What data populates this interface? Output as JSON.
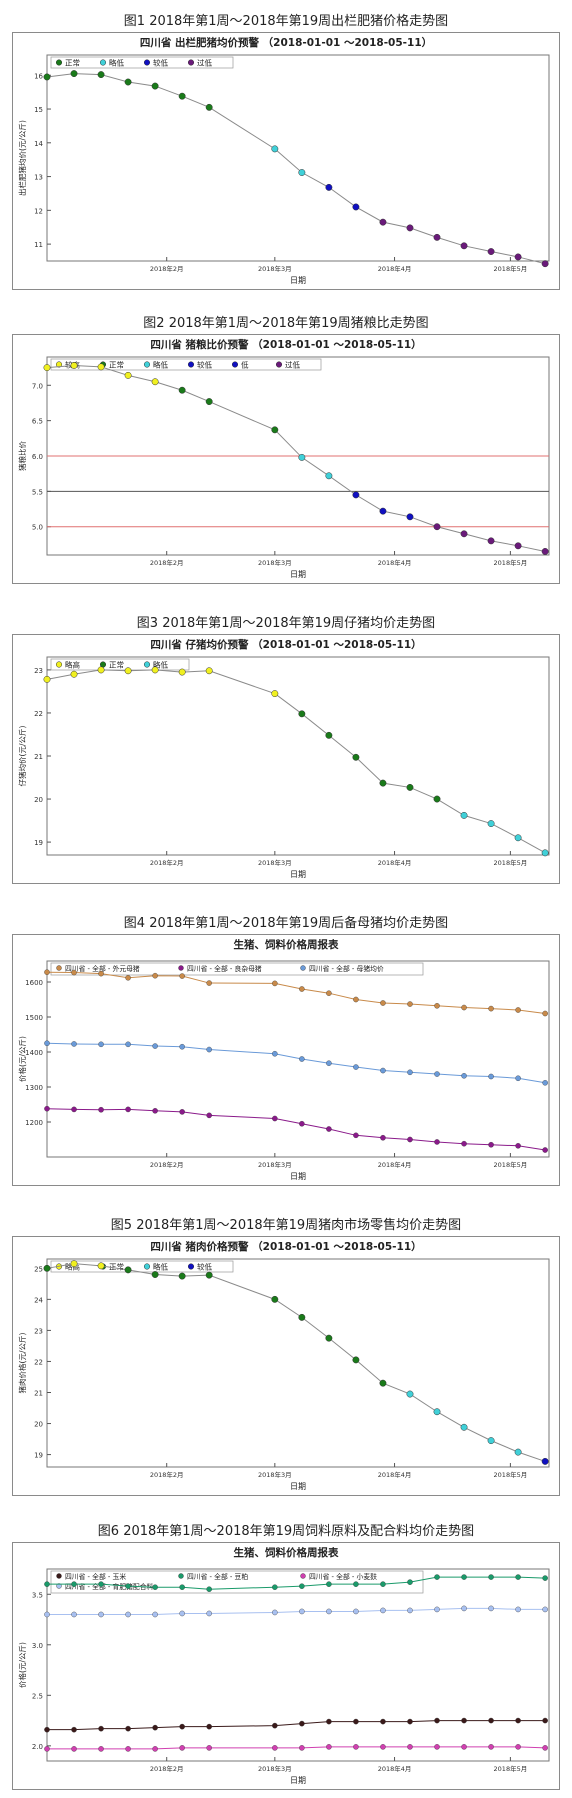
{
  "figures": [
    {
      "caption": "图1 2018年第1周～2018年第19周出栏肥猪价格走势图",
      "chart_data": {
        "type": "line",
        "title": "四川省 出栏肥猪均价预警 （2018-01-01 ～2018-05-11）",
        "xlabel": "日期",
        "ylabel": "出栏肥猪均价(元/公斤)",
        "ylim": [
          10.5,
          16.6
        ],
        "yticks": [
          11,
          12,
          13,
          14,
          15,
          16
        ],
        "x_tick_labels": [
          "2018年2月",
          "2018年3月",
          "2018年4月",
          "2018年5月"
        ],
        "legend": [
          {
            "label": "正常",
            "color": "#1a7a1a"
          },
          {
            "label": "略低",
            "color": "#40d0d8"
          },
          {
            "label": "较低",
            "color": "#1010c0"
          },
          {
            "label": "过低",
            "color": "#6a1a7a"
          }
        ],
        "points": [
          {
            "x": "2018-01-01",
            "y": 15.95,
            "status": "正常"
          },
          {
            "x": "2018-01-08",
            "y": 16.05,
            "status": "正常"
          },
          {
            "x": "2018-01-15",
            "y": 16.02,
            "status": "正常"
          },
          {
            "x": "2018-01-22",
            "y": 15.8,
            "status": "正常"
          },
          {
            "x": "2018-01-29",
            "y": 15.68,
            "status": "正常"
          },
          {
            "x": "2018-02-05",
            "y": 15.38,
            "status": "正常"
          },
          {
            "x": "2018-02-12",
            "y": 15.05,
            "status": "正常"
          },
          {
            "x": "2018-03-01",
            "y": 13.82,
            "status": "略低"
          },
          {
            "x": "2018-03-08",
            "y": 13.12,
            "status": "略低"
          },
          {
            "x": "2018-03-15",
            "y": 12.68,
            "status": "较低"
          },
          {
            "x": "2018-03-22",
            "y": 12.1,
            "status": "较低"
          },
          {
            "x": "2018-03-29",
            "y": 11.65,
            "status": "过低"
          },
          {
            "x": "2018-04-05",
            "y": 11.48,
            "status": "过低"
          },
          {
            "x": "2018-04-12",
            "y": 11.2,
            "status": "过低"
          },
          {
            "x": "2018-04-19",
            "y": 10.95,
            "status": "过低"
          },
          {
            "x": "2018-04-26",
            "y": 10.78,
            "status": "过低"
          },
          {
            "x": "2018-05-03",
            "y": 10.62,
            "status": "过低"
          },
          {
            "x": "2018-05-10",
            "y": 10.42,
            "status": "过低"
          }
        ],
        "hlines": []
      }
    },
    {
      "caption": "图2 2018年第1周～2018年第19周猪粮比走势图",
      "chart_data": {
        "type": "line",
        "title": "四川省 猪粮比价预警 （2018-01-01 ～2018-05-11）",
        "xlabel": "日期",
        "ylabel": "猪粮比价",
        "ylim": [
          4.6,
          7.4
        ],
        "yticks": [
          5.0,
          5.5,
          6.0,
          6.5,
          7.0
        ],
        "x_tick_labels": [
          "2018年2月",
          "2018年3月",
          "2018年4月",
          "2018年5月"
        ],
        "legend": [
          {
            "label": "较高",
            "color": "#f0f020"
          },
          {
            "label": "正常",
            "color": "#1a7a1a"
          },
          {
            "label": "略低",
            "color": "#40d0d8"
          },
          {
            "label": "较低",
            "color": "#1010c0"
          },
          {
            "label": "低",
            "color": "#1010c0"
          },
          {
            "label": "过低",
            "color": "#6a1a7a"
          }
        ],
        "points": [
          {
            "x": "2018-01-01",
            "y": 7.25,
            "status": "较高"
          },
          {
            "x": "2018-01-08",
            "y": 7.28,
            "status": "较高"
          },
          {
            "x": "2018-01-15",
            "y": 7.26,
            "status": "较高"
          },
          {
            "x": "2018-01-22",
            "y": 7.14,
            "status": "较高"
          },
          {
            "x": "2018-01-29",
            "y": 7.05,
            "status": "较高"
          },
          {
            "x": "2018-02-05",
            "y": 6.93,
            "status": "正常"
          },
          {
            "x": "2018-02-12",
            "y": 6.77,
            "status": "正常"
          },
          {
            "x": "2018-03-01",
            "y": 6.37,
            "status": "正常"
          },
          {
            "x": "2018-03-08",
            "y": 5.98,
            "status": "略低"
          },
          {
            "x": "2018-03-15",
            "y": 5.72,
            "status": "略低"
          },
          {
            "x": "2018-03-22",
            "y": 5.45,
            "status": "较低"
          },
          {
            "x": "2018-03-29",
            "y": 5.22,
            "status": "较低"
          },
          {
            "x": "2018-04-05",
            "y": 5.14,
            "status": "较低"
          },
          {
            "x": "2018-04-12",
            "y": 5.0,
            "status": "过低"
          },
          {
            "x": "2018-04-19",
            "y": 4.9,
            "status": "过低"
          },
          {
            "x": "2018-04-26",
            "y": 4.8,
            "status": "过低"
          },
          {
            "x": "2018-05-03",
            "y": 4.73,
            "status": "过低"
          },
          {
            "x": "2018-05-10",
            "y": 4.65,
            "status": "过低"
          }
        ],
        "hlines": [
          {
            "y": 6.0,
            "color": "#e07070"
          },
          {
            "y": 5.5,
            "color": "#555555"
          },
          {
            "y": 5.0,
            "color": "#e07070"
          }
        ]
      }
    },
    {
      "caption": "图3 2018年第1周～2018年第19周仔猪均价走势图",
      "chart_data": {
        "type": "line",
        "title": "四川省 仔猪均价预警 （2018-01-01 ～2018-05-11）",
        "xlabel": "日期",
        "ylabel": "仔猪均价(元/公斤)",
        "ylim": [
          18.7,
          23.3
        ],
        "yticks": [
          19,
          20,
          21,
          22,
          23
        ],
        "x_tick_labels": [
          "2018年2月",
          "2018年3月",
          "2018年4月",
          "2018年5月"
        ],
        "legend": [
          {
            "label": "略高",
            "color": "#f0f020"
          },
          {
            "label": "正常",
            "color": "#1a7a1a"
          },
          {
            "label": "略低",
            "color": "#40d0d8"
          }
        ],
        "points": [
          {
            "x": "2018-01-01",
            "y": 22.78,
            "status": "略高"
          },
          {
            "x": "2018-01-08",
            "y": 22.9,
            "status": "略高"
          },
          {
            "x": "2018-01-15",
            "y": 23.0,
            "status": "略高"
          },
          {
            "x": "2018-01-22",
            "y": 22.98,
            "status": "略高"
          },
          {
            "x": "2018-01-29",
            "y": 23.0,
            "status": "略高"
          },
          {
            "x": "2018-02-05",
            "y": 22.95,
            "status": "略高"
          },
          {
            "x": "2018-02-12",
            "y": 22.98,
            "status": "略高"
          },
          {
            "x": "2018-03-01",
            "y": 22.45,
            "status": "略高"
          },
          {
            "x": "2018-03-08",
            "y": 21.98,
            "status": "正常"
          },
          {
            "x": "2018-03-15",
            "y": 21.48,
            "status": "正常"
          },
          {
            "x": "2018-03-22",
            "y": 20.97,
            "status": "正常"
          },
          {
            "x": "2018-03-29",
            "y": 20.37,
            "status": "正常"
          },
          {
            "x": "2018-04-05",
            "y": 20.27,
            "status": "正常"
          },
          {
            "x": "2018-04-12",
            "y": 20.0,
            "status": "正常"
          },
          {
            "x": "2018-04-19",
            "y": 19.62,
            "status": "略低"
          },
          {
            "x": "2018-04-26",
            "y": 19.43,
            "status": "略低"
          },
          {
            "x": "2018-05-03",
            "y": 19.1,
            "status": "略低"
          },
          {
            "x": "2018-05-10",
            "y": 18.75,
            "status": "略低"
          }
        ],
        "hlines": []
      }
    },
    {
      "caption": "图4 2018年第1周～2018年第19周后备母猪均价走势图",
      "chart_data": {
        "type": "line",
        "title": "生猪、饲料价格周报表",
        "xlabel": "日期",
        "ylabel": "价格(元/公斤)",
        "ylim": [
          1100,
          1660
        ],
        "yticks": [
          1200,
          1300,
          1400,
          1500,
          1600
        ],
        "x_tick_labels": [
          "2018年2月",
          "2018年3月",
          "2018年4月",
          "2018年5月"
        ],
        "series": [
          {
            "name": "四川省 - 全部 - 外元母猪",
            "color": "#c88a4a",
            "values": [
              1628,
              1627,
              1624,
              1612,
              1618,
              1617,
              1597,
              1596,
              1580,
              1568,
              1550,
              1540,
              1537,
              1532,
              1527,
              1524,
              1520,
              1510
            ]
          },
          {
            "name": "四川省 - 全部 - 良杂母猪",
            "color": "#8a1a8a",
            "values": [
              1238,
              1236,
              1235,
              1236,
              1232,
              1229,
              1219,
              1210,
              1195,
              1180,
              1162,
              1155,
              1150,
              1143,
              1138,
              1135,
              1132,
              1120
            ]
          },
          {
            "name": "四川省 - 全部 - 母猪均价",
            "color": "#6a9ad8",
            "values": [
              1425,
              1423,
              1422,
              1422,
              1417,
              1415,
              1407,
              1395,
              1380,
              1368,
              1357,
              1347,
              1342,
              1337,
              1332,
              1330,
              1325,
              1312
            ]
          }
        ],
        "x": [
          "2018-01-01",
          "2018-01-08",
          "2018-01-15",
          "2018-01-22",
          "2018-01-29",
          "2018-02-05",
          "2018-02-12",
          "2018-03-01",
          "2018-03-08",
          "2018-03-15",
          "2018-03-22",
          "2018-03-29",
          "2018-04-05",
          "2018-04-12",
          "2018-04-19",
          "2018-04-26",
          "2018-05-03",
          "2018-05-10"
        ]
      }
    },
    {
      "caption": "图5 2018年第1周～2018年第19周猪肉市场零售均价走势图",
      "chart_data": {
        "type": "line",
        "title": "四川省 猪肉价格预警 （2018-01-01 ～2018-05-11）",
        "xlabel": "日期",
        "ylabel": "猪肉价格(元/公斤)",
        "ylim": [
          18.6,
          25.3
        ],
        "yticks": [
          19,
          20,
          21,
          22,
          23,
          24,
          25
        ],
        "x_tick_labels": [
          "2018年2月",
          "2018年3月",
          "2018年4月",
          "2018年5月"
        ],
        "legend": [
          {
            "label": "略高",
            "color": "#f0f020"
          },
          {
            "label": "正常",
            "color": "#1a7a1a"
          },
          {
            "label": "略低",
            "color": "#40d0d8"
          },
          {
            "label": "较低",
            "color": "#1010c0"
          }
        ],
        "points": [
          {
            "x": "2018-01-01",
            "y": 25.0,
            "status": "正常"
          },
          {
            "x": "2018-01-08",
            "y": 25.15,
            "status": "略高"
          },
          {
            "x": "2018-01-15",
            "y": 25.08,
            "status": "略高"
          },
          {
            "x": "2018-01-22",
            "y": 24.95,
            "status": "正常"
          },
          {
            "x": "2018-01-29",
            "y": 24.8,
            "status": "正常"
          },
          {
            "x": "2018-02-05",
            "y": 24.75,
            "status": "正常"
          },
          {
            "x": "2018-02-12",
            "y": 24.78,
            "status": "正常"
          },
          {
            "x": "2018-03-01",
            "y": 24.0,
            "status": "正常"
          },
          {
            "x": "2018-03-08",
            "y": 23.42,
            "status": "正常"
          },
          {
            "x": "2018-03-15",
            "y": 22.75,
            "status": "正常"
          },
          {
            "x": "2018-03-22",
            "y": 22.05,
            "status": "正常"
          },
          {
            "x": "2018-03-29",
            "y": 21.3,
            "status": "正常"
          },
          {
            "x": "2018-04-05",
            "y": 20.95,
            "status": "略低"
          },
          {
            "x": "2018-04-12",
            "y": 20.38,
            "status": "略低"
          },
          {
            "x": "2018-04-19",
            "y": 19.88,
            "status": "略低"
          },
          {
            "x": "2018-04-26",
            "y": 19.45,
            "status": "略低"
          },
          {
            "x": "2018-05-03",
            "y": 19.08,
            "status": "略低"
          },
          {
            "x": "2018-05-10",
            "y": 18.78,
            "status": "较低"
          }
        ],
        "hlines": []
      }
    },
    {
      "caption": "图6 2018年第1周～2018年第19周饲料原料及配合料均价走势图",
      "chart_data": {
        "type": "line",
        "title": "生猪、饲料价格周报表",
        "xlabel": "日期",
        "ylabel": "价格(元/公斤)",
        "ylim": [
          1.85,
          3.75
        ],
        "yticks": [
          2.0,
          2.5,
          3.0,
          3.5
        ],
        "x_tick_labels": [
          "2018年2月",
          "2018年3月",
          "2018年4月",
          "2018年5月"
        ],
        "series": [
          {
            "name": "四川省 - 全部 - 玉米",
            "color": "#3a1a1a",
            "values": [
              2.16,
              2.16,
              2.17,
              2.17,
              2.18,
              2.19,
              2.19,
              2.2,
              2.22,
              2.24,
              2.24,
              2.24,
              2.24,
              2.25,
              2.25,
              2.25,
              2.25,
              2.25
            ]
          },
          {
            "name": "四川省 - 全部 - 豆粕",
            "color": "#1a9a6a",
            "values": [
              3.6,
              3.6,
              3.6,
              3.58,
              3.57,
              3.57,
              3.55,
              3.57,
              3.58,
              3.6,
              3.6,
              3.6,
              3.62,
              3.67,
              3.67,
              3.67,
              3.67,
              3.66
            ]
          },
          {
            "name": "四川省 - 全部 - 小麦麸",
            "color": "#d040b0",
            "values": [
              1.97,
              1.97,
              1.97,
              1.97,
              1.97,
              1.98,
              1.98,
              1.98,
              1.98,
              1.99,
              1.99,
              1.99,
              1.99,
              1.99,
              1.99,
              1.99,
              1.99,
              1.98
            ]
          },
          {
            "name": "四川省 - 全部 - 育肥猪配合料",
            "color": "#a8c0f0",
            "values": [
              3.3,
              3.3,
              3.3,
              3.3,
              3.3,
              3.31,
              3.31,
              3.32,
              3.33,
              3.33,
              3.33,
              3.34,
              3.34,
              3.35,
              3.36,
              3.36,
              3.35,
              3.35
            ]
          }
        ],
        "x": [
          "2018-01-01",
          "2018-01-08",
          "2018-01-15",
          "2018-01-22",
          "2018-01-29",
          "2018-02-05",
          "2018-02-12",
          "2018-03-01",
          "2018-03-08",
          "2018-03-15",
          "2018-03-22",
          "2018-03-29",
          "2018-04-05",
          "2018-04-12",
          "2018-04-19",
          "2018-04-26",
          "2018-05-03",
          "2018-05-10"
        ]
      }
    }
  ]
}
